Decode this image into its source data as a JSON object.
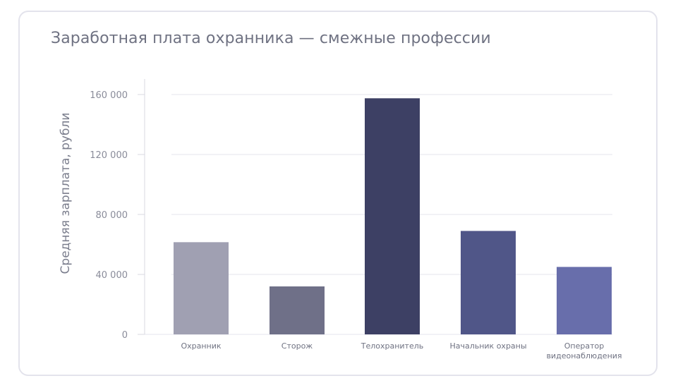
{
  "chart_data": {
    "type": "bar",
    "title": "Заработная плата охранника — смежные профессии",
    "xlabel": "",
    "ylabel": "Средняя зарплата, рубли",
    "categories": [
      "Охранник",
      "Сторож",
      "Телохранитель",
      "Начальник охраны",
      "Оператор видеонаблюдения"
    ],
    "category_lines": [
      [
        "Охранник"
      ],
      [
        "Сторож"
      ],
      [
        "Телохранитель"
      ],
      [
        "Начальник охраны"
      ],
      [
        "Оператор",
        "видеонаблюдения"
      ]
    ],
    "values": [
      61500,
      32000,
      157500,
      69000,
      45000
    ],
    "colors": [
      "#a0a0b2",
      "#6f7088",
      "#3d4064",
      "#505688",
      "#686eab"
    ],
    "ylim": [
      0,
      170000
    ],
    "yticks": [
      0,
      40000,
      80000,
      120000,
      160000
    ],
    "ytick_labels": [
      "0",
      "40 000",
      "80 000",
      "120 000",
      "160 000"
    ],
    "grid": true,
    "legend": "none"
  }
}
